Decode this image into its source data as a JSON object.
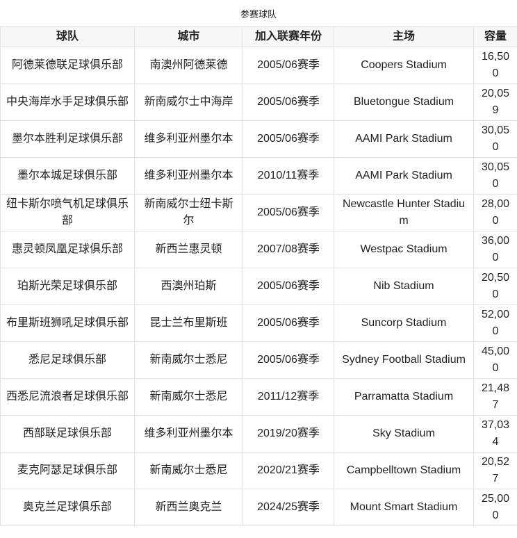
{
  "caption": "参赛球队",
  "headers": [
    "球队",
    "城市",
    "加入联赛年份",
    "主场",
    "容量"
  ],
  "rows": [
    [
      "阿德莱德联足球俱乐部",
      "南澳州阿德莱德",
      "2005/06赛季",
      "Coopers Stadium",
      "16,500"
    ],
    [
      "中央海岸水手足球俱乐部",
      "新南威尔士中海岸",
      "2005/06赛季",
      "Bluetongue Stadium",
      "20,059"
    ],
    [
      "墨尔本胜利足球俱乐部",
      "维多利亚州墨尔本",
      "2005/06赛季",
      "AAMI Park Stadium",
      "30,050"
    ],
    [
      "墨尔本城足球俱乐部",
      "维多利亚州墨尔本",
      "2010/11赛季",
      "AAMI Park Stadium",
      "30,050"
    ],
    [
      "纽卡斯尔喷气机足球俱乐部",
      "新南威尔士纽卡斯尔",
      "2005/06赛季",
      "Newcastle Hunter Stadium",
      "28,000"
    ],
    [
      "惠灵顿凤凰足球俱乐部",
      "新西兰惠灵顿",
      "2007/08赛季",
      "Westpac Stadium",
      "36,000"
    ],
    [
      "珀斯光荣足球俱乐部",
      "西澳州珀斯",
      "2005/06赛季",
      "Nib Stadium",
      "20,500"
    ],
    [
      "布里斯班狮吼足球俱乐部",
      "昆士兰布里斯班",
      "2005/06赛季",
      "Suncorp Stadium",
      "52,000"
    ],
    [
      "悉尼足球俱乐部",
      "新南威尔士悉尼",
      "2005/06赛季",
      "Sydney Football Stadium",
      "45,000"
    ],
    [
      "西悉尼流浪者足球俱乐部",
      "新南威尔士悉尼",
      "2011/12赛季",
      "Parramatta Stadium",
      "21,487"
    ],
    [
      "西部联足球俱乐部",
      "维多利亚州墨尔本",
      "2019/20赛季",
      "Sky Stadium",
      "37,034"
    ],
    [
      "麦克阿瑟足球俱乐部",
      "新南威尔士悉尼",
      "2020/21赛季",
      "Campbelltown Stadium",
      "20,527"
    ],
    [
      "奥克兰足球俱乐部",
      "新西兰奥克兰",
      "2024/25赛季",
      "Mount Smart Stadium",
      "25,000"
    ]
  ]
}
